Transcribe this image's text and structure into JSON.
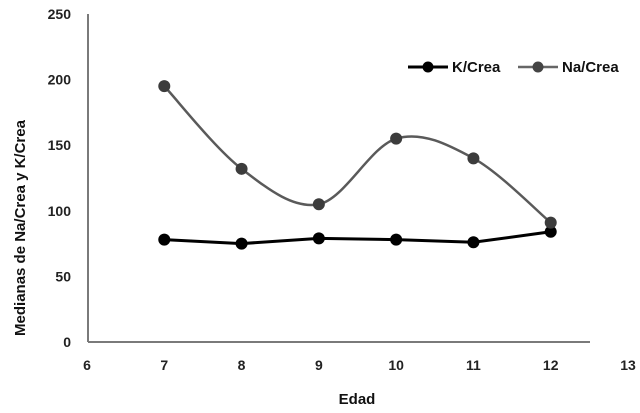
{
  "chart_data": {
    "type": "line",
    "title": "",
    "xlabel": "Edad",
    "ylabel": "Medianas de Na/Crea y K/Crea",
    "x": [
      7,
      8,
      9,
      10,
      11,
      12
    ],
    "xlim": [
      6,
      13
    ],
    "ylim": [
      0,
      250
    ],
    "xticks": [
      6,
      7,
      8,
      9,
      10,
      11,
      12,
      13
    ],
    "yticks": [
      0,
      50,
      100,
      150,
      200,
      250
    ],
    "grid": false,
    "legend_position": "top-right",
    "series": [
      {
        "name": "K/Crea",
        "color": "#000000",
        "smooth": false,
        "values": [
          78,
          75,
          79,
          78,
          76,
          84
        ]
      },
      {
        "name": "Na/Crea",
        "color": "#555555",
        "smooth": true,
        "values": [
          195,
          132,
          105,
          155,
          140,
          91
        ]
      }
    ]
  }
}
